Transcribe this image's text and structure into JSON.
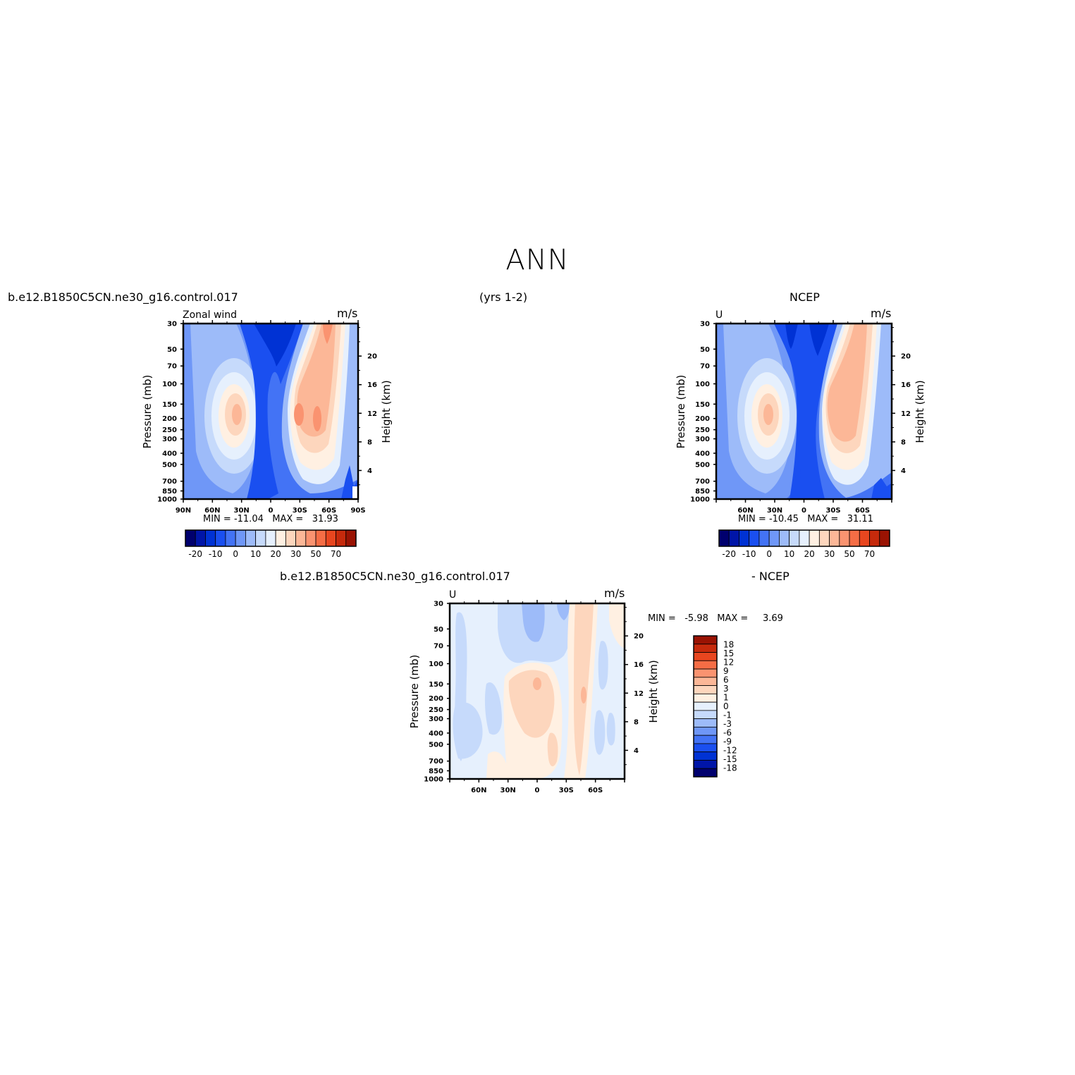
{
  "title": "ANN",
  "colors": {
    "panel": [
      "#00006e",
      "#0015a8",
      "#0032d4",
      "#1a4ff0",
      "#4373f5",
      "#6f97f7",
      "#9dbbf9",
      "#c6dafb",
      "#e6f0fd",
      "#fff0e2",
      "#fdd6bd",
      "#fcb797",
      "#fa9370",
      "#f56d45",
      "#e8461f",
      "#c62a0c",
      "#9a1303"
    ],
    "diff": [
      "#00006e",
      "#0015a8",
      "#0032d4",
      "#1a4ff0",
      "#4373f5",
      "#6f97f7",
      "#9dbbf9",
      "#c6dafb",
      "#e6f0fd",
      "#fff0e2",
      "#fdd6bd",
      "#fcb797",
      "#fa9370",
      "#f56d45",
      "#e8461f",
      "#c62a0c",
      "#9a1303"
    ]
  },
  "chart_data": [
    {
      "id": "model",
      "type": "heatmap",
      "header_left": "b.e12.B1850C5CN.ne30_g16.control.017",
      "header_center": "(yrs 1-2)",
      "variable": "Zonal wind",
      "units": "m/s",
      "ylabel": "Pressure (mb)",
      "ylabel_right": "Height (km)",
      "x_tick_labels": [
        "90N",
        "60N",
        "30N",
        "0",
        "30S",
        "60S",
        "90S"
      ],
      "y_tick_labels": [
        "30",
        "50",
        "70",
        "100",
        "150",
        "200",
        "250",
        "300",
        "400",
        "500",
        "700",
        "850",
        "1000"
      ],
      "y_right_tick_labels": [
        "20",
        "16",
        "12",
        "8",
        "4"
      ],
      "min_label": "MIN =",
      "min_value": "-11.04",
      "max_label": "MAX =",
      "max_value": "31.93",
      "colorbar_labels": [
        "-20",
        "-10",
        "0",
        "10",
        "20",
        "30",
        "50",
        "70"
      ],
      "features": [
        {
          "lat": 45,
          "p": 200,
          "u": 25
        },
        {
          "lat": -45,
          "p": 200,
          "u": 32
        },
        {
          "lat": 0,
          "p": 50,
          "u": -11
        },
        {
          "lat": -60,
          "p": 30,
          "u": 30
        }
      ]
    },
    {
      "id": "obs",
      "type": "heatmap",
      "header_center": "NCEP",
      "variable": "U",
      "units": "m/s",
      "ylabel": "Pressure (mb)",
      "ylabel_right": "Height (km)",
      "x_tick_labels": [
        "60N",
        "30N",
        "0",
        "30S",
        "60S"
      ],
      "y_tick_labels": [
        "30",
        "50",
        "70",
        "100",
        "150",
        "200",
        "250",
        "300",
        "400",
        "500",
        "700",
        "850",
        "1000"
      ],
      "y_right_tick_labels": [
        "20",
        "16",
        "12",
        "8",
        "4"
      ],
      "min_label": "MIN =",
      "min_value": "-10.45",
      "max_label": "MAX =",
      "max_value": "31.11",
      "colorbar_labels": [
        "-20",
        "-10",
        "0",
        "10",
        "20",
        "30",
        "50",
        "70"
      ],
      "features": [
        {
          "lat": 45,
          "p": 200,
          "u": 25
        },
        {
          "lat": -45,
          "p": 200,
          "u": 30
        },
        {
          "lat": 0,
          "p": 50,
          "u": -10
        },
        {
          "lat": -60,
          "p": 30,
          "u": 28
        }
      ]
    },
    {
      "id": "diff",
      "type": "heatmap",
      "header_left": "b.e12.B1850C5CN.ne30_g16.control.017",
      "header_right": "- NCEP",
      "variable": "U",
      "units": "m/s",
      "ylabel": "Pressure (mb)",
      "ylabel_right": "Height (km)",
      "x_tick_labels": [
        "60N",
        "30N",
        "0",
        "30S",
        "60S"
      ],
      "y_tick_labels": [
        "30",
        "50",
        "70",
        "100",
        "150",
        "200",
        "250",
        "300",
        "400",
        "500",
        "700",
        "850",
        "1000"
      ],
      "y_right_tick_labels": [
        "20",
        "16",
        "12",
        "8",
        "4"
      ],
      "min_label": "MIN =",
      "min_value": "-5.98",
      "max_label": "MAX =",
      "max_value": "3.69",
      "colorbar_labels": [
        "18",
        "15",
        "12",
        "9",
        "6",
        "3",
        "1",
        "0",
        "-1",
        "-3",
        "-6",
        "-9",
        "-12",
        "-15",
        "-18"
      ]
    }
  ]
}
